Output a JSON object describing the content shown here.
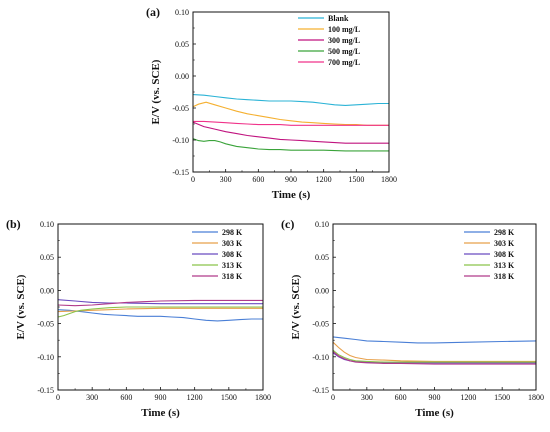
{
  "chart_data": [
    {
      "panel_label": "(a)",
      "type": "line",
      "xlabel": "Time (s)",
      "ylabel": "E/V (vs. SCE)",
      "xlim": [
        0,
        1800
      ],
      "ylim": [
        -0.15,
        0.1
      ],
      "xticks": [
        0,
        300,
        600,
        900,
        1200,
        1500,
        1800
      ],
      "yticks": [
        -0.15,
        -0.1,
        -0.05,
        0.0,
        0.05,
        0.1
      ],
      "legend_position": "top-right",
      "series": [
        {
          "name": "Blank",
          "color": "#2bb3d6",
          "x": [
            0,
            100,
            200,
            300,
            400,
            500,
            600,
            700,
            800,
            900,
            1000,
            1100,
            1200,
            1300,
            1400,
            1500,
            1600,
            1700,
            1800
          ],
          "y": [
            -0.029,
            -0.03,
            -0.032,
            -0.034,
            -0.036,
            -0.037,
            -0.038,
            -0.039,
            -0.039,
            -0.039,
            -0.04,
            -0.041,
            -0.043,
            -0.045,
            -0.046,
            -0.045,
            -0.044,
            -0.043,
            -0.043
          ]
        },
        {
          "name": "100 mg/L",
          "color": "#f5b030",
          "x": [
            0,
            50,
            120,
            200,
            300,
            400,
            500,
            600,
            700,
            800,
            900,
            1000,
            1100,
            1200,
            1300,
            1400,
            1500,
            1600,
            1700,
            1800
          ],
          "y": [
            -0.048,
            -0.044,
            -0.041,
            -0.045,
            -0.05,
            -0.055,
            -0.059,
            -0.062,
            -0.065,
            -0.068,
            -0.07,
            -0.072,
            -0.073,
            -0.074,
            -0.075,
            -0.076,
            -0.076,
            -0.077,
            -0.077,
            -0.077
          ]
        },
        {
          "name": "300 mg/L",
          "color": "#c0137f",
          "x": [
            0,
            100,
            200,
            300,
            400,
            500,
            600,
            700,
            800,
            900,
            1000,
            1100,
            1200,
            1300,
            1400,
            1500,
            1600,
            1700,
            1800
          ],
          "y": [
            -0.072,
            -0.079,
            -0.083,
            -0.087,
            -0.09,
            -0.093,
            -0.095,
            -0.097,
            -0.099,
            -0.1,
            -0.101,
            -0.102,
            -0.103,
            -0.104,
            -0.105,
            -0.105,
            -0.105,
            -0.105,
            -0.105
          ]
        },
        {
          "name": "500 mg/L",
          "color": "#3aa33a",
          "x": [
            0,
            50,
            100,
            150,
            200,
            250,
            300,
            400,
            500,
            600,
            700,
            800,
            900,
            1000,
            1200,
            1400,
            1600,
            1800
          ],
          "y": [
            -0.098,
            -0.101,
            -0.102,
            -0.101,
            -0.101,
            -0.103,
            -0.106,
            -0.11,
            -0.112,
            -0.114,
            -0.115,
            -0.115,
            -0.116,
            -0.116,
            -0.116,
            -0.117,
            -0.117,
            -0.117
          ]
        },
        {
          "name": "700 mg/L",
          "color": "#f0338a",
          "x": [
            0,
            100,
            200,
            300,
            400,
            500,
            600,
            700,
            800,
            900,
            1000,
            1200,
            1400,
            1600,
            1800
          ],
          "y": [
            -0.071,
            -0.071,
            -0.072,
            -0.073,
            -0.074,
            -0.075,
            -0.076,
            -0.076,
            -0.076,
            -0.077,
            -0.077,
            -0.077,
            -0.077,
            -0.077,
            -0.077
          ]
        }
      ]
    },
    {
      "panel_label": "(b)",
      "type": "line",
      "xlabel": "Time (s)",
      "ylabel": "E/V (vs. SCE)",
      "xlim": [
        0,
        1800
      ],
      "ylim": [
        -0.15,
        0.1
      ],
      "xticks": [
        0,
        300,
        600,
        900,
        1200,
        1500,
        1800
      ],
      "yticks": [
        -0.15,
        -0.1,
        -0.05,
        0.0,
        0.05,
        0.1
      ],
      "legend_position": "top-right",
      "series": [
        {
          "name": "298 K",
          "color": "#4a7fd6",
          "x": [
            0,
            100,
            200,
            300,
            400,
            500,
            600,
            700,
            800,
            900,
            1000,
            1100,
            1200,
            1300,
            1400,
            1500,
            1600,
            1700,
            1800
          ],
          "y": [
            -0.029,
            -0.03,
            -0.032,
            -0.034,
            -0.036,
            -0.037,
            -0.038,
            -0.039,
            -0.039,
            -0.039,
            -0.04,
            -0.041,
            -0.043,
            -0.045,
            -0.046,
            -0.045,
            -0.044,
            -0.043,
            -0.043
          ]
        },
        {
          "name": "303 K",
          "color": "#e8a04a",
          "x": [
            0,
            150,
            300,
            450,
            600,
            900,
            1200,
            1500,
            1800
          ],
          "y": [
            -0.032,
            -0.031,
            -0.03,
            -0.029,
            -0.028,
            -0.027,
            -0.027,
            -0.027,
            -0.027
          ]
        },
        {
          "name": "308 K",
          "color": "#6a4cc0",
          "x": [
            0,
            150,
            300,
            450,
            600,
            900,
            1200,
            1500,
            1800
          ],
          "y": [
            -0.014,
            -0.016,
            -0.018,
            -0.019,
            -0.019,
            -0.02,
            -0.02,
            -0.02,
            -0.02
          ]
        },
        {
          "name": "313 K",
          "color": "#8bc34a",
          "x": [
            0,
            50,
            100,
            150,
            200,
            300,
            450,
            600,
            900,
            1200,
            1500,
            1800
          ],
          "y": [
            -0.04,
            -0.038,
            -0.035,
            -0.032,
            -0.03,
            -0.028,
            -0.026,
            -0.025,
            -0.025,
            -0.025,
            -0.025,
            -0.025
          ]
        },
        {
          "name": "318 K",
          "color": "#b03a8a",
          "x": [
            0,
            150,
            300,
            450,
            600,
            750,
            900,
            1200,
            1500,
            1800
          ],
          "y": [
            -0.022,
            -0.023,
            -0.022,
            -0.02,
            -0.018,
            -0.017,
            -0.016,
            -0.015,
            -0.015,
            -0.015
          ]
        }
      ]
    },
    {
      "panel_label": "(c)",
      "type": "line",
      "xlabel": "Time (s)",
      "ylabel": "E/V (vs. SCE)",
      "xlim": [
        0,
        1800
      ],
      "ylim": [
        -0.15,
        0.1
      ],
      "xticks": [
        0,
        300,
        600,
        900,
        1200,
        1500,
        1800
      ],
      "yticks": [
        -0.15,
        -0.1,
        -0.05,
        0.0,
        0.05,
        0.1
      ],
      "legend_position": "top-right",
      "series": [
        {
          "name": "298 K",
          "color": "#4a7fd6",
          "x": [
            0,
            100,
            200,
            300,
            450,
            600,
            750,
            900,
            1200,
            1500,
            1800
          ],
          "y": [
            -0.07,
            -0.072,
            -0.074,
            -0.076,
            -0.077,
            -0.078,
            -0.079,
            -0.079,
            -0.078,
            -0.077,
            -0.076
          ]
        },
        {
          "name": "303 K",
          "color": "#e8a04a",
          "x": [
            0,
            50,
            100,
            150,
            200,
            300,
            450,
            600,
            900,
            1200,
            1500,
            1800
          ],
          "y": [
            -0.078,
            -0.086,
            -0.093,
            -0.098,
            -0.101,
            -0.104,
            -0.105,
            -0.106,
            -0.107,
            -0.107,
            -0.107,
            -0.107
          ]
        },
        {
          "name": "308 K",
          "color": "#6a4cc0",
          "x": [
            0,
            50,
            100,
            150,
            200,
            300,
            450,
            600,
            900,
            1200,
            1500,
            1800
          ],
          "y": [
            -0.094,
            -0.1,
            -0.104,
            -0.106,
            -0.107,
            -0.108,
            -0.109,
            -0.109,
            -0.109,
            -0.109,
            -0.109,
            -0.109
          ]
        },
        {
          "name": "313 K",
          "color": "#8bc34a",
          "x": [
            0,
            50,
            100,
            150,
            200,
            300,
            450,
            600,
            900,
            1200,
            1500,
            1800
          ],
          "y": [
            -0.09,
            -0.097,
            -0.101,
            -0.104,
            -0.106,
            -0.107,
            -0.108,
            -0.108,
            -0.108,
            -0.108,
            -0.108,
            -0.108
          ]
        },
        {
          "name": "318 K",
          "color": "#b03a8a",
          "x": [
            0,
            50,
            100,
            150,
            200,
            300,
            450,
            600,
            900,
            1200,
            1500,
            1800
          ],
          "y": [
            -0.092,
            -0.099,
            -0.103,
            -0.106,
            -0.108,
            -0.109,
            -0.11,
            -0.11,
            -0.111,
            -0.111,
            -0.111,
            -0.111
          ]
        }
      ]
    }
  ]
}
